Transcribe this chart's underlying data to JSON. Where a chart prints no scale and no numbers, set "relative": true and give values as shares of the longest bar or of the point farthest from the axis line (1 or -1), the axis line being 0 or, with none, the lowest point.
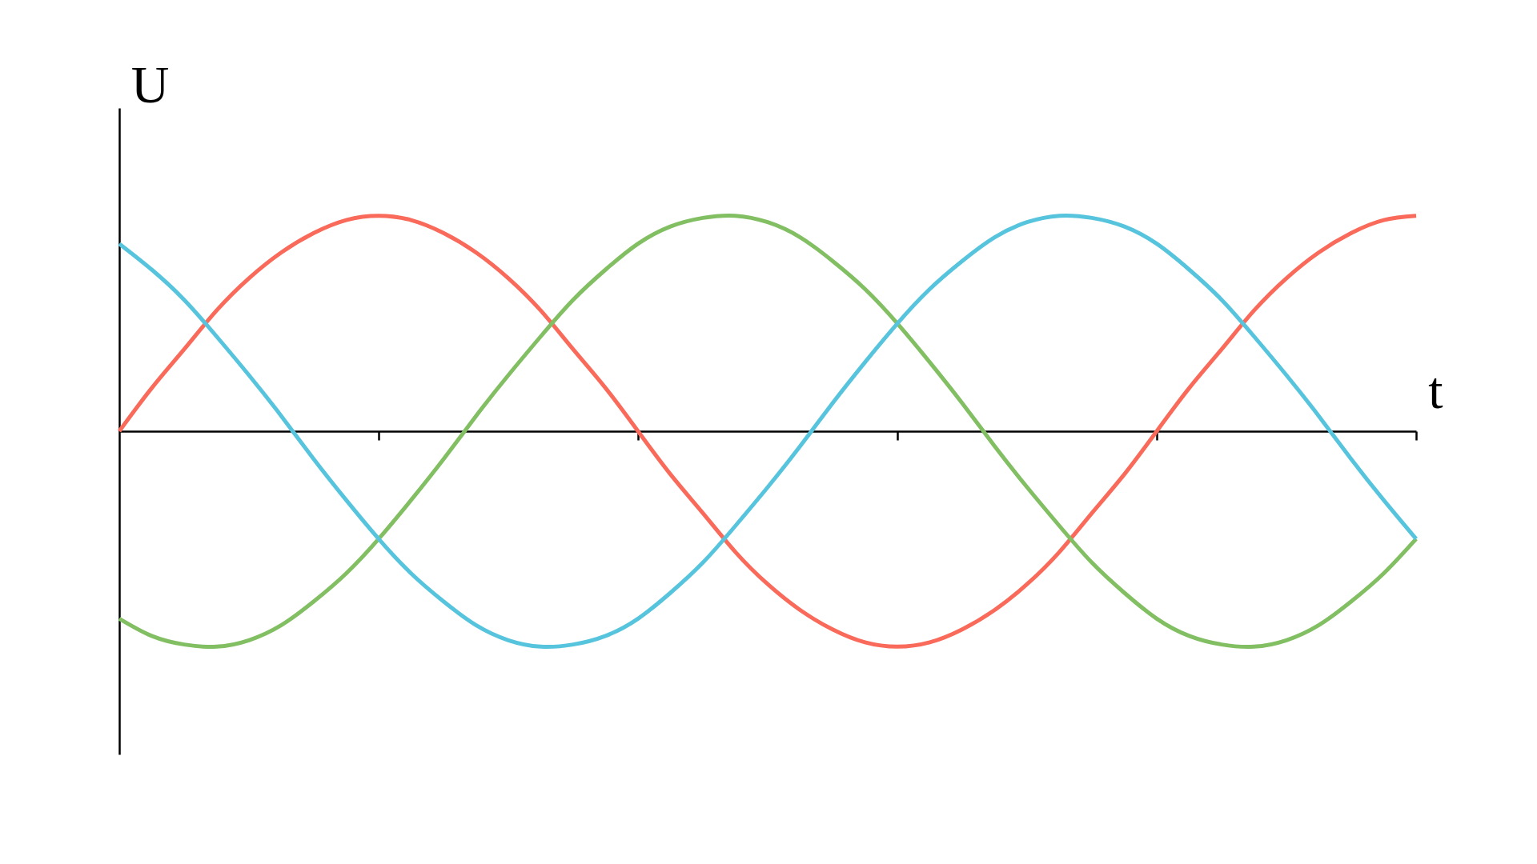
{
  "chart_data": {
    "type": "line",
    "relative": true,
    "xlabel": "t",
    "ylabel": "U",
    "categories": [
      null,
      null,
      null,
      null,
      null,
      null,
      null,
      null,
      null,
      null,
      null,
      null,
      null,
      null,
      null,
      null,
      null,
      null,
      null,
      null,
      null,
      null,
      null,
      null,
      null,
      null,
      null,
      null,
      null,
      null,
      null,
      null,
      null,
      null,
      null,
      null,
      null,
      null,
      null,
      null,
      null
    ],
    "series": [
      {
        "color": "#fa6a5a",
        "values": [
          0,
          0.2,
          0.38,
          0.56,
          0.71,
          0.83,
          0.92,
          0.98,
          1,
          0.98,
          0.92,
          0.83,
          0.71,
          0.56,
          0.38,
          0.2,
          0,
          -0.2,
          -0.38,
          -0.56,
          -0.71,
          -0.83,
          -0.92,
          -0.98,
          -1,
          -0.98,
          -0.92,
          -0.83,
          -0.71,
          -0.56,
          -0.38,
          -0.2,
          0,
          0.2,
          0.38,
          0.56,
          0.71,
          0.83,
          0.92,
          0.98,
          1
        ]
      },
      {
        "color": "#82bf63",
        "values": [
          -0.87,
          -0.95,
          -0.99,
          -1,
          -0.97,
          -0.9,
          -0.79,
          -0.66,
          -0.5,
          -0.32,
          -0.13,
          0.07,
          0.26,
          0.44,
          0.61,
          0.75,
          0.87,
          0.95,
          0.99,
          1,
          0.97,
          0.9,
          0.79,
          0.66,
          0.5,
          0.32,
          0.13,
          -0.07,
          -0.26,
          -0.44,
          -0.61,
          -0.75,
          -0.87,
          -0.95,
          -0.99,
          -1,
          -0.97,
          -0.9,
          -0.79,
          -0.66,
          -0.5
        ]
      },
      {
        "color": "#57c4de",
        "values": [
          0.87,
          0.75,
          0.61,
          0.44,
          0.26,
          0.07,
          -0.13,
          -0.32,
          -0.5,
          -0.66,
          -0.79,
          -0.9,
          -0.97,
          -1,
          -0.99,
          -0.95,
          -0.87,
          -0.75,
          -0.61,
          -0.44,
          -0.26,
          -0.07,
          0.13,
          0.32,
          0.5,
          0.66,
          0.79,
          0.9,
          0.97,
          1,
          0.99,
          0.95,
          0.87,
          0.75,
          0.61,
          0.44,
          0.26,
          0.07,
          -0.13,
          -0.32,
          -0.5
        ]
      }
    ]
  }
}
